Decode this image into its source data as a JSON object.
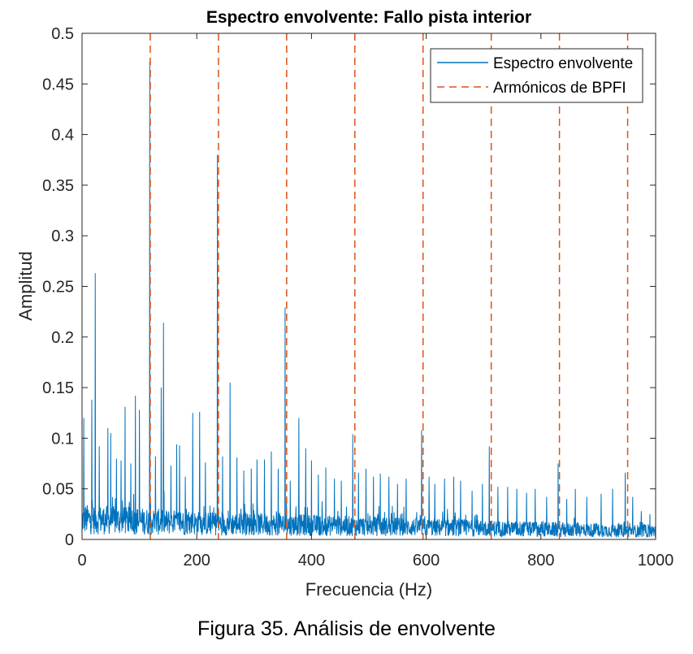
{
  "caption": "Figura 35. Análisis de envolvente",
  "chart_data": {
    "type": "line",
    "title": "Espectro envolvente: Fallo pista interior",
    "xlabel": "Frecuencia (Hz)",
    "ylabel": "Amplitud",
    "xlim": [
      0,
      1000
    ],
    "ylim": [
      0,
      0.5
    ],
    "xticks": [
      0,
      200,
      400,
      600,
      800,
      1000
    ],
    "xtick_labels": [
      "0",
      "200",
      "400",
      "600",
      "800",
      "1000"
    ],
    "yticks": [
      0,
      0.05,
      0.1,
      0.15,
      0.2,
      0.25,
      0.3,
      0.35,
      0.4,
      0.45,
      0.5
    ],
    "ytick_labels": [
      "0",
      "0.05",
      "0.1",
      "0.15",
      "0.2",
      "0.25",
      "0.3",
      "0.35",
      "0.4",
      "0.45",
      "0.5"
    ],
    "grid": false,
    "legend": {
      "placement": "top-right",
      "entries": [
        "Espectro envolvente",
        "Armónicos de BPFI"
      ]
    },
    "series": [
      {
        "name": "Espectro envolvente",
        "style": "solid",
        "color": "#0072BD",
        "noise_floor_approx": {
          "x": [
            0,
            200,
            400,
            600,
            800,
            1000
          ],
          "y": [
            0.02,
            0.016,
            0.014,
            0.012,
            0.01,
            0.008
          ]
        },
        "peaks": {
          "x": [
            3,
            17,
            23,
            30,
            45,
            50,
            60,
            68,
            75,
            85,
            93,
            100,
            118,
            128,
            138,
            142,
            155,
            165,
            170,
            180,
            193,
            205,
            215,
            236,
            245,
            258,
            270,
            282,
            295,
            305,
            318,
            330,
            342,
            354,
            363,
            378,
            390,
            400,
            412,
            425,
            440,
            452,
            472,
            482,
            495,
            508,
            520,
            535,
            550,
            565,
            592,
            605,
            615,
            632,
            648,
            660,
            680,
            698,
            710,
            725,
            742,
            758,
            775,
            790,
            810,
            830,
            845,
            860,
            880,
            905,
            925,
            947,
            960,
            975,
            990
          ],
          "y": [
            0.12,
            0.138,
            0.263,
            0.092,
            0.11,
            0.105,
            0.08,
            0.078,
            0.131,
            0.075,
            0.142,
            0.128,
            0.472,
            0.082,
            0.15,
            0.214,
            0.073,
            0.094,
            0.093,
            0.062,
            0.125,
            0.126,
            0.076,
            0.38,
            0.082,
            0.155,
            0.081,
            0.068,
            0.07,
            0.079,
            0.079,
            0.087,
            0.07,
            0.229,
            0.058,
            0.12,
            0.09,
            0.078,
            0.064,
            0.071,
            0.06,
            0.058,
            0.104,
            0.066,
            0.07,
            0.062,
            0.065,
            0.062,
            0.055,
            0.06,
            0.108,
            0.062,
            0.055,
            0.06,
            0.062,
            0.058,
            0.048,
            0.055,
            0.092,
            0.052,
            0.052,
            0.05,
            0.046,
            0.05,
            0.042,
            0.075,
            0.04,
            0.05,
            0.042,
            0.045,
            0.05,
            0.066,
            0.042,
            0.028,
            0.025
          ]
        }
      },
      {
        "name": "Armónicos de BPFI",
        "style": "dashed",
        "color": "#D95319",
        "harmonic_frequencies": [
          118.9,
          237.8,
          356.7,
          475.6,
          594.5,
          713.4,
          832.3,
          951.2
        ]
      }
    ]
  }
}
